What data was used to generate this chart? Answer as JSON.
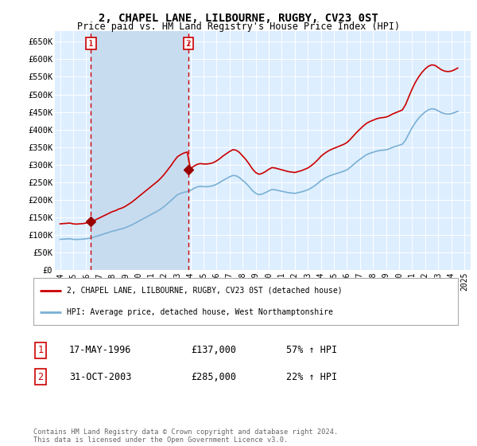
{
  "title": "2, CHAPEL LANE, LILBOURNE, RUGBY, CV23 0ST",
  "subtitle": "Price paid vs. HM Land Registry's House Price Index (HPI)",
  "title_fontsize": 10,
  "subtitle_fontsize": 8.5,
  "background_color": "#ffffff",
  "plot_bg_color": "#ddeeff",
  "shaded_bg_color": "#c8dcf0",
  "grid_color": "#ffffff",
  "ylim": [
    0,
    680000
  ],
  "yticks": [
    0,
    50000,
    100000,
    150000,
    200000,
    250000,
    300000,
    350000,
    400000,
    450000,
    500000,
    550000,
    600000,
    650000
  ],
  "ytick_labels": [
    "£0",
    "£50K",
    "£100K",
    "£150K",
    "£200K",
    "£250K",
    "£300K",
    "£350K",
    "£400K",
    "£450K",
    "£500K",
    "£550K",
    "£600K",
    "£650K"
  ],
  "sale1_year": 1996.37,
  "sale1_price": 137000,
  "sale2_year": 2003.83,
  "sale2_price": 285000,
  "red_line_color": "#cc0000",
  "blue_line_color": "#7ab0d4",
  "marker_color": "#990000",
  "dashed_color": "#cc0000",
  "legend_entry1": "2, CHAPEL LANE, LILBOURNE, RUGBY, CV23 0ST (detached house)",
  "legend_entry2": "HPI: Average price, detached house, West Northamptonshire",
  "table_entry1_num": "1",
  "table_entry1_date": "17-MAY-1996",
  "table_entry1_price": "£137,000",
  "table_entry1_hpi": "57% ↑ HPI",
  "table_entry2_num": "2",
  "table_entry2_date": "31-OCT-2003",
  "table_entry2_price": "£285,000",
  "table_entry2_hpi": "22% ↑ HPI",
  "footnote": "Contains HM Land Registry data © Crown copyright and database right 2024.\nThis data is licensed under the Open Government Licence v3.0.",
  "hpi_base_index": 87000,
  "sale1_hpi_index": 91500,
  "sale2_hpi_index": 220000,
  "xlim_left": 1993.6,
  "xlim_right": 2025.5,
  "xtick_years": [
    1994,
    1995,
    1996,
    1997,
    1998,
    1999,
    2000,
    2001,
    2002,
    2003,
    2004,
    2005,
    2006,
    2007,
    2008,
    2009,
    2010,
    2011,
    2012,
    2013,
    2014,
    2015,
    2016,
    2017,
    2018,
    2019,
    2020,
    2021,
    2022,
    2023,
    2024,
    2025
  ],
  "hpi_raw": [
    [
      1994.0,
      87000
    ],
    [
      1994.25,
      87500
    ],
    [
      1994.5,
      88000
    ],
    [
      1994.75,
      88500
    ],
    [
      1995.0,
      87000
    ],
    [
      1995.25,
      86500
    ],
    [
      1995.5,
      87000
    ],
    [
      1995.75,
      87500
    ],
    [
      1996.0,
      88500
    ],
    [
      1996.25,
      90000
    ],
    [
      1996.5,
      92000
    ],
    [
      1996.75,
      95000
    ],
    [
      1997.0,
      98000
    ],
    [
      1997.25,
      101000
    ],
    [
      1997.5,
      104000
    ],
    [
      1997.75,
      107000
    ],
    [
      1998.0,
      110000
    ],
    [
      1998.25,
      112000
    ],
    [
      1998.5,
      115000
    ],
    [
      1998.75,
      117000
    ],
    [
      1999.0,
      120000
    ],
    [
      1999.25,
      124000
    ],
    [
      1999.5,
      128000
    ],
    [
      1999.75,
      133000
    ],
    [
      2000.0,
      138000
    ],
    [
      2000.25,
      143000
    ],
    [
      2000.5,
      148000
    ],
    [
      2000.75,
      153000
    ],
    [
      2001.0,
      158000
    ],
    [
      2001.25,
      163000
    ],
    [
      2001.5,
      168000
    ],
    [
      2001.75,
      174000
    ],
    [
      2002.0,
      181000
    ],
    [
      2002.25,
      189000
    ],
    [
      2002.5,
      197000
    ],
    [
      2002.75,
      206000
    ],
    [
      2003.0,
      214000
    ],
    [
      2003.25,
      218000
    ],
    [
      2003.5,
      221000
    ],
    [
      2003.75,
      223000
    ],
    [
      2004.0,
      226000
    ],
    [
      2004.25,
      232000
    ],
    [
      2004.5,
      236000
    ],
    [
      2004.75,
      238000
    ],
    [
      2005.0,
      237000
    ],
    [
      2005.25,
      237000
    ],
    [
      2005.5,
      238000
    ],
    [
      2005.75,
      240000
    ],
    [
      2006.0,
      244000
    ],
    [
      2006.25,
      249000
    ],
    [
      2006.5,
      255000
    ],
    [
      2006.75,
      260000
    ],
    [
      2007.0,
      265000
    ],
    [
      2007.25,
      269000
    ],
    [
      2007.5,
      268000
    ],
    [
      2007.75,
      263000
    ],
    [
      2008.0,
      255000
    ],
    [
      2008.25,
      247000
    ],
    [
      2008.5,
      237000
    ],
    [
      2008.75,
      226000
    ],
    [
      2009.0,
      218000
    ],
    [
      2009.25,
      214000
    ],
    [
      2009.5,
      216000
    ],
    [
      2009.75,
      220000
    ],
    [
      2010.0,
      225000
    ],
    [
      2010.25,
      229000
    ],
    [
      2010.5,
      228000
    ],
    [
      2010.75,
      226000
    ],
    [
      2011.0,
      224000
    ],
    [
      2011.25,
      222000
    ],
    [
      2011.5,
      220000
    ],
    [
      2011.75,
      219000
    ],
    [
      2012.0,
      218000
    ],
    [
      2012.25,
      220000
    ],
    [
      2012.5,
      222000
    ],
    [
      2012.75,
      225000
    ],
    [
      2013.0,
      228000
    ],
    [
      2013.25,
      233000
    ],
    [
      2013.5,
      239000
    ],
    [
      2013.75,
      246000
    ],
    [
      2014.0,
      254000
    ],
    [
      2014.25,
      260000
    ],
    [
      2014.5,
      265000
    ],
    [
      2014.75,
      269000
    ],
    [
      2015.0,
      272000
    ],
    [
      2015.25,
      275000
    ],
    [
      2015.5,
      278000
    ],
    [
      2015.75,
      281000
    ],
    [
      2016.0,
      285000
    ],
    [
      2016.25,
      292000
    ],
    [
      2016.5,
      300000
    ],
    [
      2016.75,
      308000
    ],
    [
      2017.0,
      315000
    ],
    [
      2017.25,
      322000
    ],
    [
      2017.5,
      328000
    ],
    [
      2017.75,
      332000
    ],
    [
      2018.0,
      335000
    ],
    [
      2018.25,
      338000
    ],
    [
      2018.5,
      340000
    ],
    [
      2018.75,
      341000
    ],
    [
      2019.0,
      342000
    ],
    [
      2019.25,
      345000
    ],
    [
      2019.5,
      349000
    ],
    [
      2019.75,
      352000
    ],
    [
      2020.0,
      355000
    ],
    [
      2020.25,
      358000
    ],
    [
      2020.5,
      370000
    ],
    [
      2020.75,
      388000
    ],
    [
      2021.0,
      405000
    ],
    [
      2021.25,
      420000
    ],
    [
      2021.5,
      432000
    ],
    [
      2021.75,
      442000
    ],
    [
      2022.0,
      450000
    ],
    [
      2022.25,
      456000
    ],
    [
      2022.5,
      459000
    ],
    [
      2022.75,
      458000
    ],
    [
      2023.0,
      453000
    ],
    [
      2023.25,
      448000
    ],
    [
      2023.5,
      445000
    ],
    [
      2023.75,
      444000
    ],
    [
      2024.0,
      445000
    ],
    [
      2024.25,
      448000
    ],
    [
      2024.5,
      452000
    ]
  ]
}
